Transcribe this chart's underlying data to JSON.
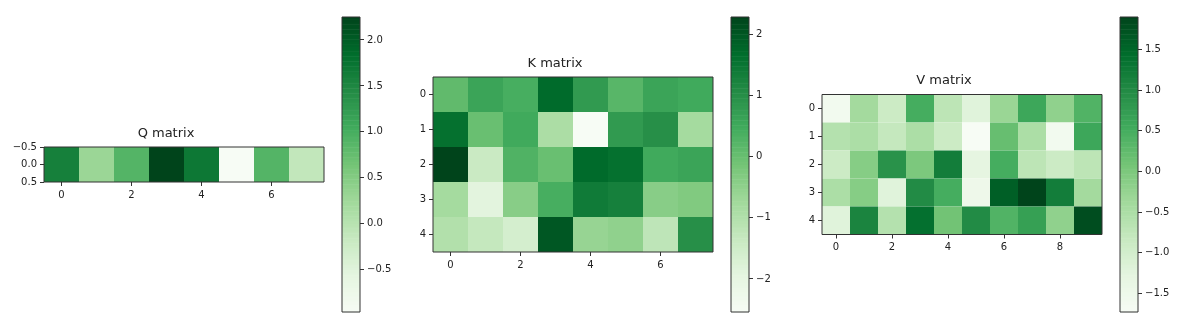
{
  "chart_data": [
    {
      "type": "heatmap",
      "title": "Q matrix",
      "categories": [
        "0",
        null,
        "2",
        null,
        "4",
        null,
        "6",
        null
      ],
      "ylim": [
        0.5,
        -0.5
      ],
      "yticks": [
        {
          "value": -0.5,
          "label": "−0.5"
        },
        {
          "value": 0,
          "label": "0.0"
        },
        {
          "value": 0.5,
          "label": "0.5"
        }
      ],
      "cells": [
        [
          1.6,
          0.3,
          0.9,
          2.25,
          1.7,
          -0.96,
          0.9,
          -0.1
        ]
      ],
      "clim": [
        -0.96,
        2.25
      ],
      "cticks": [
        {
          "value": -0.5,
          "label": "−0.5"
        },
        {
          "value": 0,
          "label": "0.0"
        },
        0.5,
        {
          "value": 1,
          "label": "1.0"
        },
        1.5,
        {
          "value": 2,
          "label": "2.0"
        }
      ]
    },
    {
      "type": "heatmap",
      "title": "K matrix",
      "categories": [
        "0",
        null,
        "2",
        null,
        "4",
        null,
        "6",
        null
      ],
      "y_categories": [
        "0",
        "1",
        "2",
        "3",
        "4"
      ],
      "cells": [
        [
          0.1,
          0.6,
          0.4,
          1.7,
          0.8,
          0.2,
          0.6,
          0.5
        ],
        [
          1.6,
          0.0,
          0.5,
          -0.9,
          -2.54,
          0.8,
          1.0,
          -0.8
        ],
        [
          2.28,
          -1.4,
          0.3,
          0.0,
          1.7,
          1.6,
          0.5,
          0.6
        ],
        [
          -0.8,
          -1.9,
          -0.4,
          0.4,
          1.4,
          1.3,
          -0.4,
          -0.3
        ],
        [
          -1.0,
          -1.3,
          -1.6,
          2.0,
          -0.6,
          -0.5,
          -1.2,
          1.0
        ]
      ],
      "clim": [
        -2.54,
        2.28
      ],
      "cticks": [
        {
          "value": -2,
          "label": "−2"
        },
        {
          "value": -1,
          "label": "−1"
        },
        0,
        1,
        2
      ]
    },
    {
      "type": "heatmap",
      "title": "V matrix",
      "categories": [
        "0",
        null,
        "2",
        null,
        "4",
        null,
        "6",
        null,
        "8",
        null
      ],
      "y_categories": [
        "0",
        "1",
        "2",
        "3",
        "4"
      ],
      "cells": [
        [
          -1.6,
          -0.4,
          -0.9,
          0.5,
          -0.7,
          -1.2,
          -0.3,
          0.6,
          -0.2,
          0.4
        ],
        [
          -0.6,
          -0.5,
          -0.8,
          -0.5,
          -0.9,
          -1.73,
          0.2,
          -0.5,
          -1.6,
          0.6
        ],
        [
          -0.9,
          -0.1,
          0.9,
          0.0,
          1.2,
          -1.3,
          0.5,
          -0.7,
          -0.9,
          -0.7
        ],
        [
          -0.5,
          -0.1,
          -1.2,
          1.0,
          0.5,
          -1.5,
          1.6,
          1.9,
          1.2,
          -0.4
        ],
        [
          -1.2,
          1.1,
          -0.6,
          1.4,
          0.1,
          1.0,
          0.4,
          0.7,
          -0.2,
          1.8
        ]
      ],
      "clim": [
        -1.73,
        1.9
      ],
      "cticks": [
        {
          "value": -1.5,
          "label": "−1.5"
        },
        {
          "value": -1,
          "label": "−1.0"
        },
        {
          "value": -0.5,
          "label": "−0.5"
        },
        {
          "value": 0,
          "label": "0.0"
        },
        0.5,
        {
          "value": 1,
          "label": "1.0"
        },
        1.5
      ]
    }
  ]
}
